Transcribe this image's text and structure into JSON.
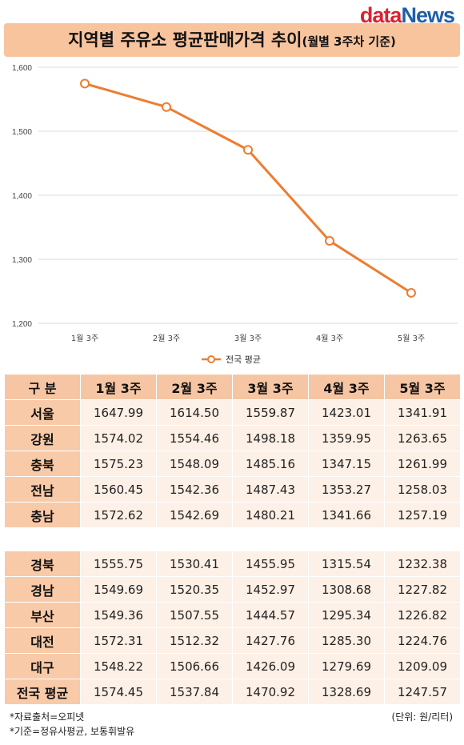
{
  "logo": {
    "part1": "data",
    "part2": "News"
  },
  "title": {
    "main": "지역별 주유소 평균판매가격 추이",
    "sub": "(월별 3주차 기준)"
  },
  "chart_data": {
    "type": "line",
    "categories": [
      "1월 3주",
      "2월 3주",
      "3월 3주",
      "4월 3주",
      "5월 3주"
    ],
    "series": [
      {
        "name": "전국 평균",
        "values": [
          1574.45,
          1537.84,
          1470.92,
          1328.69,
          1247.57
        ],
        "color": "#ed7d31"
      }
    ],
    "ylim": [
      1200,
      1600
    ],
    "yticks": [
      "1,200",
      "1,300",
      "1,400",
      "1,500",
      "1,600"
    ],
    "ytick_values": [
      1200,
      1300,
      1400,
      1500,
      1600
    ],
    "grid": true,
    "legend_position": "bottom"
  },
  "table": {
    "headers": [
      "구  분",
      "1월 3주",
      "2월 3주",
      "3월 3주",
      "4월 3주",
      "5월 3주"
    ],
    "group1": [
      {
        "region": "서울",
        "values": [
          "1647.99",
          "1614.50",
          "1559.87",
          "1423.01",
          "1341.91"
        ]
      },
      {
        "region": "강원",
        "values": [
          "1574.02",
          "1554.46",
          "1498.18",
          "1359.95",
          "1263.65"
        ]
      },
      {
        "region": "충북",
        "values": [
          "1575.23",
          "1548.09",
          "1485.16",
          "1347.15",
          "1261.99"
        ]
      },
      {
        "region": "전남",
        "values": [
          "1560.45",
          "1542.36",
          "1487.43",
          "1353.27",
          "1258.03"
        ]
      },
      {
        "region": "충남",
        "values": [
          "1572.62",
          "1542.69",
          "1480.21",
          "1341.66",
          "1257.19"
        ]
      }
    ],
    "group2": [
      {
        "region": "경북",
        "values": [
          "1555.75",
          "1530.41",
          "1455.95",
          "1315.54",
          "1232.38"
        ]
      },
      {
        "region": "경남",
        "values": [
          "1549.69",
          "1520.35",
          "1452.97",
          "1308.68",
          "1227.82"
        ]
      },
      {
        "region": "부산",
        "values": [
          "1549.36",
          "1507.55",
          "1444.57",
          "1295.34",
          "1226.82"
        ]
      },
      {
        "region": "대전",
        "values": [
          "1572.31",
          "1512.32",
          "1427.76",
          "1285.30",
          "1224.76"
        ]
      },
      {
        "region": "대구",
        "values": [
          "1548.22",
          "1506.66",
          "1426.09",
          "1279.69",
          "1209.09"
        ]
      },
      {
        "region": "전국 평균",
        "values": [
          "1574.45",
          "1537.84",
          "1470.92",
          "1328.69",
          "1247.57"
        ]
      }
    ]
  },
  "footer": {
    "source": "*자료출처=오피넷",
    "basis": "*기준=정유사평균, 보통휘발유",
    "unit": "(단위: 원/리터)"
  }
}
